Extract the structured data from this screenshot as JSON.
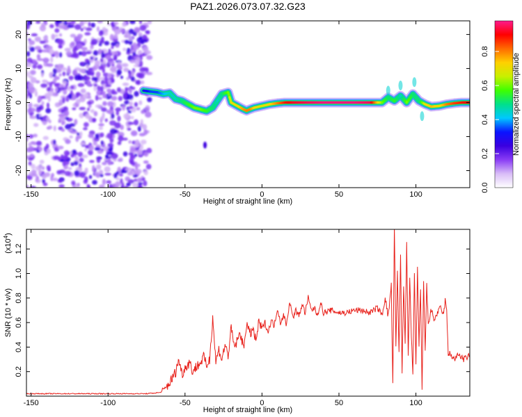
{
  "figure_title": "PAZ1.2026.073.07.32.G23",
  "chart_data": [
    {
      "type": "heatmap",
      "title": "PAZ1.2026.073.07.32.G23",
      "xlabel": "Height of straight line (km)",
      "ylabel": "Frequency (Hz)",
      "xlim": [
        -153,
        135
      ],
      "ylim": [
        -25,
        24
      ],
      "xticks": [
        -150,
        -100,
        -50,
        0,
        50,
        100
      ],
      "xtick_labels": [
        "-150",
        "-100",
        "-50",
        "0",
        "50",
        "100"
      ],
      "yticks": [
        -20,
        -10,
        0,
        10,
        20
      ],
      "ytick_labels": [
        "-20",
        "-10",
        "0",
        "10",
        "20"
      ],
      "noise_region_x": [
        -153,
        -73
      ],
      "signal_ridge": {
        "x": [
          -77,
          -72,
          -68,
          -64,
          -60,
          -56,
          -52,
          -48,
          -44,
          -40,
          -36,
          -32,
          -29,
          -26,
          -22,
          -20,
          -16,
          -14,
          -12,
          -10,
          -8,
          -5,
          0,
          5,
          10,
          15,
          20,
          30,
          40,
          50,
          60,
          70,
          78,
          82,
          86,
          90,
          94,
          98,
          102,
          106,
          110,
          115,
          120,
          125,
          130,
          135
        ],
        "freq_hz": [
          3.5,
          3.2,
          3.0,
          2.5,
          2.8,
          1.0,
          0.5,
          -0.5,
          -1.5,
          -2.0,
          -2.5,
          -1.5,
          0.5,
          2.5,
          3.0,
          0.0,
          -1.0,
          -1.5,
          -2.0,
          -2.4,
          -2.0,
          -1.5,
          -1.0,
          -0.5,
          -0.2,
          0.0,
          0.0,
          0.0,
          0.0,
          0.0,
          0.0,
          0.0,
          0.0,
          1.5,
          0.5,
          2.0,
          0.0,
          2.5,
          0.5,
          -0.5,
          -1.2,
          -1.0,
          -0.5,
          -0.2,
          0.0,
          0.0
        ],
        "amplitude": [
          0.3,
          0.35,
          0.35,
          0.4,
          0.45,
          0.45,
          0.5,
          0.55,
          0.6,
          0.6,
          0.55,
          0.5,
          0.45,
          0.5,
          0.6,
          0.7,
          0.7,
          0.75,
          0.78,
          0.8,
          0.8,
          0.72,
          0.68,
          0.72,
          0.8,
          0.88,
          0.92,
          0.95,
          0.97,
          0.97,
          0.97,
          0.95,
          0.6,
          0.5,
          0.55,
          0.45,
          0.6,
          0.5,
          0.5,
          0.7,
          0.75,
          0.7,
          0.8,
          0.85,
          0.88,
          0.9
        ]
      },
      "colorbar": {
        "label": "Normalized spectral amplitude",
        "range": [
          0,
          0.98
        ],
        "ticks": [
          0.0,
          0.2,
          0.4,
          0.6,
          0.8
        ],
        "tick_labels": [
          "0.0",
          "0.2",
          "0.4",
          "0.6",
          "0.8"
        ],
        "colors": [
          "#ffffff",
          "#d9bdf7",
          "#8a3df5",
          "#3a00e0",
          "#0a14ff",
          "#00c8ff",
          "#00e08a",
          "#3fff00",
          "#c8f000",
          "#ffd000",
          "#ff6a00",
          "#ff0000",
          "#ff1a8c"
        ]
      }
    },
    {
      "type": "line",
      "title": "",
      "xlabel": "Height of straight line (km)",
      "ylabel": "SNR (10 * v/v)",
      "y_multiplier": "(x10",
      "y_multiplier_exp": "4",
      "y_multiplier_close": ")",
      "xlim": [
        -153,
        135
      ],
      "ylim": [
        0.0,
        1.36
      ],
      "xticks": [
        -150,
        -100,
        -50,
        0,
        50,
        100
      ],
      "xtick_labels": [
        "-150",
        "-100",
        "-50",
        "0",
        "50",
        "100"
      ],
      "yticks": [
        0.2,
        0.4,
        0.6,
        0.8,
        1.0,
        1.2
      ],
      "ytick_labels": [
        "0.2",
        "0.4",
        "0.6",
        "0.8",
        "1.0",
        "1.2"
      ],
      "color": "#e8211b",
      "series": [
        {
          "name": "SNR",
          "x": [
            -153,
            -140,
            -120,
            -100,
            -90,
            -80,
            -75,
            -70,
            -66,
            -63,
            -60,
            -58,
            -56,
            -54,
            -52,
            -50,
            -47,
            -45,
            -42,
            -40,
            -38,
            -36,
            -34,
            -32,
            -30,
            -28,
            -26,
            -24,
            -22,
            -20,
            -18,
            -16,
            -14,
            -12,
            -10,
            -8,
            -6,
            -4,
            -2,
            0,
            2,
            4,
            6,
            8,
            10,
            12,
            14,
            16,
            18,
            20,
            22,
            24,
            26,
            28,
            30,
            32,
            34,
            36,
            38,
            40,
            45,
            50,
            55,
            60,
            65,
            70,
            75,
            78,
            80,
            82,
            84,
            85,
            86,
            87,
            88,
            89,
            90,
            91,
            92,
            93,
            94,
            95,
            96,
            97,
            98,
            99,
            100,
            101,
            102,
            103,
            104,
            105,
            106,
            107,
            108,
            110,
            112,
            114,
            116,
            118,
            119,
            120,
            121,
            122,
            125,
            128,
            131,
            135
          ],
          "values": [
            0.02,
            0.02,
            0.02,
            0.02,
            0.02,
            0.02,
            0.02,
            0.025,
            0.03,
            0.06,
            0.11,
            0.15,
            0.2,
            0.3,
            0.18,
            0.23,
            0.28,
            0.2,
            0.25,
            0.27,
            0.32,
            0.25,
            0.3,
            0.65,
            0.28,
            0.38,
            0.3,
            0.42,
            0.33,
            0.55,
            0.4,
            0.45,
            0.52,
            0.38,
            0.6,
            0.5,
            0.55,
            0.45,
            0.6,
            0.55,
            0.6,
            0.52,
            0.62,
            0.57,
            0.72,
            0.6,
            0.66,
            0.58,
            0.78,
            0.64,
            0.7,
            0.65,
            0.75,
            0.68,
            0.8,
            0.7,
            0.72,
            0.66,
            0.76,
            0.68,
            0.7,
            0.68,
            0.68,
            0.7,
            0.7,
            0.68,
            0.72,
            0.66,
            0.8,
            0.65,
            0.9,
            0.08,
            1.36,
            0.4,
            1.0,
            0.35,
            1.15,
            0.2,
            0.9,
            0.45,
            1.25,
            0.3,
            0.95,
            0.5,
            0.15,
            1.0,
            0.25,
            1.05,
            0.4,
            0.85,
            0.05,
            0.95,
            0.35,
            0.9,
            0.6,
            0.7,
            0.62,
            0.68,
            0.72,
            0.66,
            0.78,
            0.7,
            0.32,
            0.35,
            0.3,
            0.34,
            0.3,
            0.33
          ]
        }
      ]
    }
  ]
}
